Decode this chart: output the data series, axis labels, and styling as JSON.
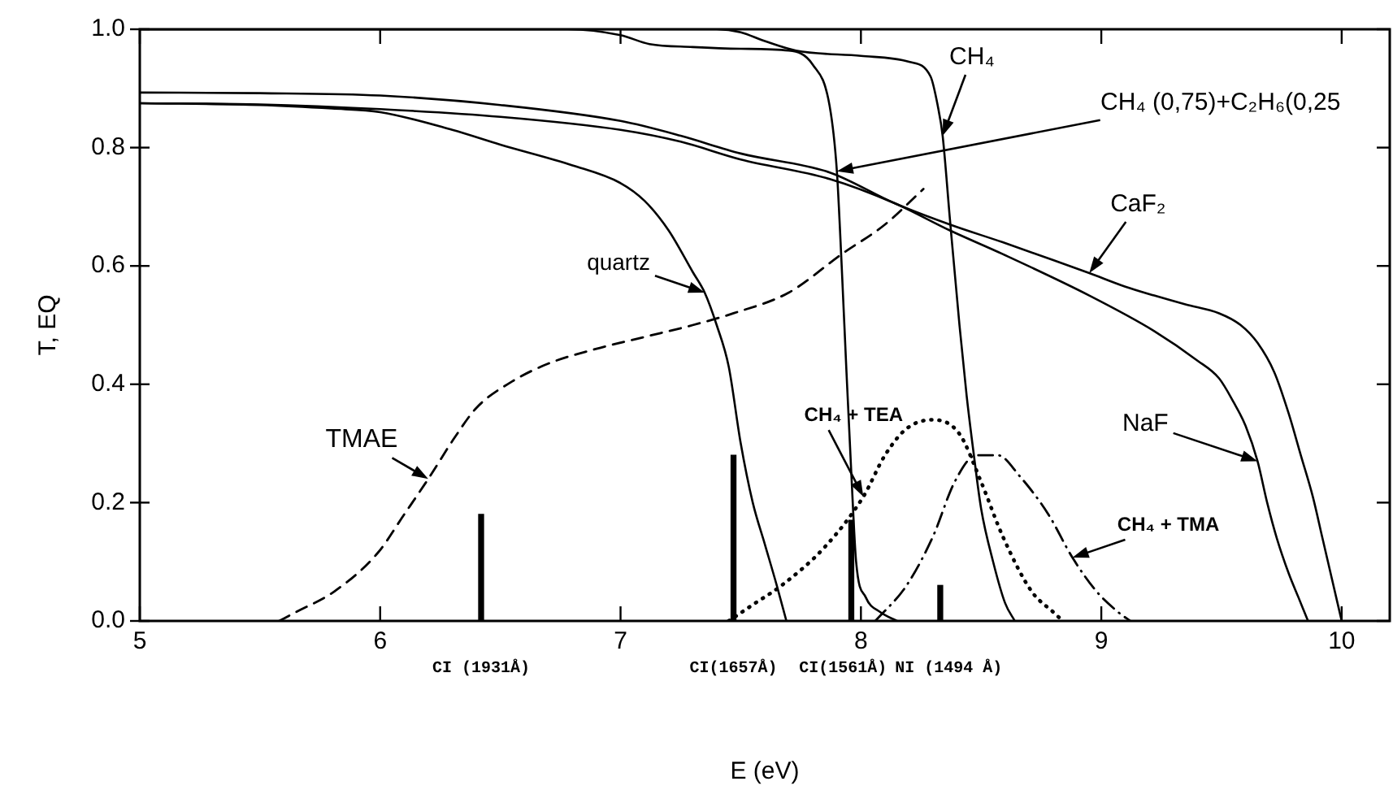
{
  "chart_data": {
    "type": "line",
    "xlabel": "E (eV)",
    "ylabel": "T, EQ",
    "xlim": [
      5,
      10.2
    ],
    "xticks": [
      5,
      6,
      7,
      8,
      9,
      10
    ],
    "ylim": [
      0,
      1
    ],
    "yticks": [
      {
        "value": 0,
        "label": "0.0"
      },
      0.2,
      0.4,
      0.6,
      0.8,
      {
        "value": 1,
        "label": "1.0"
      }
    ],
    "series": [
      {
        "name": "quartz",
        "color": "#000000",
        "x": [
          5.0,
          5.5,
          5.8,
          6.0,
          6.3,
          6.5,
          6.8,
          7.0,
          7.1,
          7.2,
          7.3,
          7.35,
          7.4,
          7.45,
          7.5,
          7.55,
          7.6,
          7.65,
          7.69
        ],
        "values": [
          0.875,
          0.872,
          0.866,
          0.86,
          0.83,
          0.805,
          0.77,
          0.74,
          0.71,
          0.66,
          0.59,
          0.555,
          0.5,
          0.43,
          0.3,
          0.2,
          0.13,
          0.06,
          0.0
        ]
      },
      {
        "name": "CH₄ (0,75)+C₂H₆(0,25",
        "color": "#000000",
        "x": [
          5.0,
          6.78,
          7.0,
          7.12,
          7.3,
          7.5,
          7.7,
          7.8,
          7.87,
          7.9,
          7.92,
          7.94,
          7.96,
          7.98,
          8.02,
          8.08,
          8.15
        ],
        "values": [
          1.0,
          1.0,
          0.99,
          0.975,
          0.97,
          0.967,
          0.964,
          0.94,
          0.87,
          0.76,
          0.6,
          0.42,
          0.25,
          0.1,
          0.04,
          0.015,
          0.0
        ]
      },
      {
        "name": "CH₄",
        "color": "#000000",
        "x": [
          5.0,
          7.4,
          7.5,
          7.6,
          7.73,
          8.0,
          8.2,
          8.29,
          8.32,
          8.34,
          8.37,
          8.41,
          8.44,
          8.47,
          8.5,
          8.55,
          8.6,
          8.64
        ],
        "values": [
          1.0,
          1.0,
          0.995,
          0.98,
          0.964,
          0.955,
          0.945,
          0.92,
          0.87,
          0.82,
          0.68,
          0.5,
          0.38,
          0.28,
          0.19,
          0.1,
          0.03,
          0.0
        ]
      },
      {
        "name": "CaF₂",
        "color": "#000000",
        "x": [
          5.0,
          5.5,
          6.0,
          6.5,
          7.0,
          7.25,
          7.5,
          7.87,
          8.14,
          8.37,
          8.59,
          8.8,
          8.95,
          9.1,
          9.22,
          9.35,
          9.49,
          9.58,
          9.65,
          9.72,
          9.78,
          9.83,
          9.88,
          9.92,
          9.96,
          10.0
        ],
        "values": [
          0.893,
          0.892,
          0.888,
          0.872,
          0.845,
          0.82,
          0.79,
          0.758,
          0.706,
          0.67,
          0.64,
          0.61,
          0.588,
          0.565,
          0.55,
          0.535,
          0.52,
          0.5,
          0.47,
          0.42,
          0.35,
          0.28,
          0.21,
          0.14,
          0.07,
          0.0
        ]
      },
      {
        "name": "NaF",
        "color": "#000000",
        "x": [
          5.0,
          5.5,
          6.0,
          6.5,
          7.0,
          7.25,
          7.5,
          7.87,
          8.14,
          8.37,
          8.59,
          8.95,
          9.22,
          9.4,
          9.49,
          9.55,
          9.6,
          9.65,
          9.69,
          9.73,
          9.78,
          9.82,
          9.86
        ],
        "values": [
          0.875,
          0.873,
          0.865,
          0.852,
          0.83,
          0.81,
          0.78,
          0.747,
          0.706,
          0.66,
          0.62,
          0.55,
          0.49,
          0.44,
          0.41,
          0.37,
          0.33,
          0.27,
          0.2,
          0.14,
          0.08,
          0.04,
          0.0
        ]
      },
      {
        "name": "TMAE",
        "color": "#000000",
        "line_style": "dashed",
        "x": [
          5.58,
          5.65,
          5.81,
          5.99,
          6.1,
          6.2,
          6.31,
          6.4,
          6.55,
          6.7,
          6.9,
          7.1,
          7.3,
          7.47,
          7.7,
          7.92,
          8.1,
          8.26
        ],
        "values": [
          0.0,
          0.015,
          0.05,
          0.115,
          0.18,
          0.24,
          0.31,
          0.36,
          0.405,
          0.435,
          0.46,
          0.48,
          0.5,
          0.52,
          0.555,
          0.62,
          0.67,
          0.73
        ]
      },
      {
        "name": "CH₄ + TEA",
        "color": "#000000",
        "line_style": "dotted",
        "x": [
          7.45,
          7.56,
          7.67,
          7.85,
          8.01,
          8.1,
          8.19,
          8.3,
          8.41,
          8.5,
          8.59,
          8.71,
          8.8,
          8.84
        ],
        "values": [
          0.0,
          0.03,
          0.06,
          0.125,
          0.21,
          0.28,
          0.325,
          0.34,
          0.316,
          0.235,
          0.143,
          0.05,
          0.015,
          0.0
        ]
      },
      {
        "name": "CH₄ + TMA",
        "color": "#000000",
        "line_style": "dashdot",
        "x": [
          8.06,
          8.19,
          8.3,
          8.39,
          8.48,
          8.57,
          8.66,
          8.78,
          8.88,
          8.98,
          9.07,
          9.12
        ],
        "values": [
          0.0,
          0.06,
          0.143,
          0.235,
          0.28,
          0.28,
          0.245,
          0.18,
          0.107,
          0.05,
          0.015,
          0.0
        ]
      },
      {
        "type": "bar",
        "color": "#000000",
        "x": [
          6.42,
          7.47,
          7.96,
          8.33
        ],
        "values": [
          0.18,
          0.28,
          0.17,
          0.06
        ]
      }
    ],
    "annotations": [
      {
        "text": "CI (1931Å)",
        "x": 6.42,
        "y": 0
      },
      {
        "text": "CI(1657Å)",
        "x": 7.47,
        "y": 0
      },
      {
        "text": "CI(1561Å)",
        "x": 7.96,
        "y": 0
      },
      {
        "text": "NI (1494 Å)",
        "x": 8.33,
        "y": 0
      }
    ]
  }
}
